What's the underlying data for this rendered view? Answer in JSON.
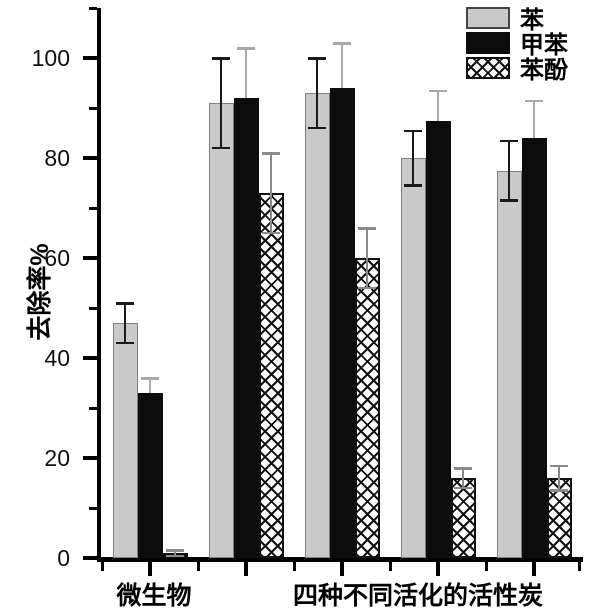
{
  "chart_data": {
    "type": "bar",
    "title": "",
    "ylabel": "去除率%",
    "ylim": [
      0,
      110
    ],
    "y_major_ticks": [
      0,
      20,
      40,
      60,
      80,
      100
    ],
    "y_minor_ticks": [
      10,
      30,
      50,
      70,
      90,
      110
    ],
    "num_groups": 5,
    "xlabel_groups": [
      {
        "label": "微生物",
        "groups": [
          0
        ]
      },
      {
        "label": "四种不同活化的活性炭",
        "groups": [
          1,
          2,
          3,
          4
        ]
      }
    ],
    "series": [
      {
        "name": "苯",
        "style": "gray",
        "color": "#c9c9c9",
        "values": [
          47,
          91,
          93,
          80,
          77.5
        ],
        "errors": [
          4,
          9,
          7,
          5.5,
          6
        ]
      },
      {
        "name": "甲苯",
        "style": "black",
        "color": "#0c0c0c",
        "values": [
          33,
          92,
          94,
          87.5,
          84
        ],
        "errors": [
          3,
          10,
          9,
          6,
          7.5
        ]
      },
      {
        "name": "苯酚",
        "style": "hatch",
        "color": "#ffffff",
        "values": [
          1,
          73,
          60,
          16,
          16
        ],
        "errors": [
          0.6,
          8,
          6,
          2,
          2.5
        ]
      }
    ],
    "legend_position": "top-right",
    "grid": false,
    "error_bars": true
  },
  "colors": {
    "background": "#ffffff",
    "axis": "#000000",
    "gray_bar": "#c9c9c9",
    "black_bar": "#0c0c0c",
    "hatch_line": "#111111",
    "error_on_gray": "#1a1a1a",
    "error_on_black": "#a8a8a8",
    "error_on_hatch": "#8a8a8a"
  }
}
